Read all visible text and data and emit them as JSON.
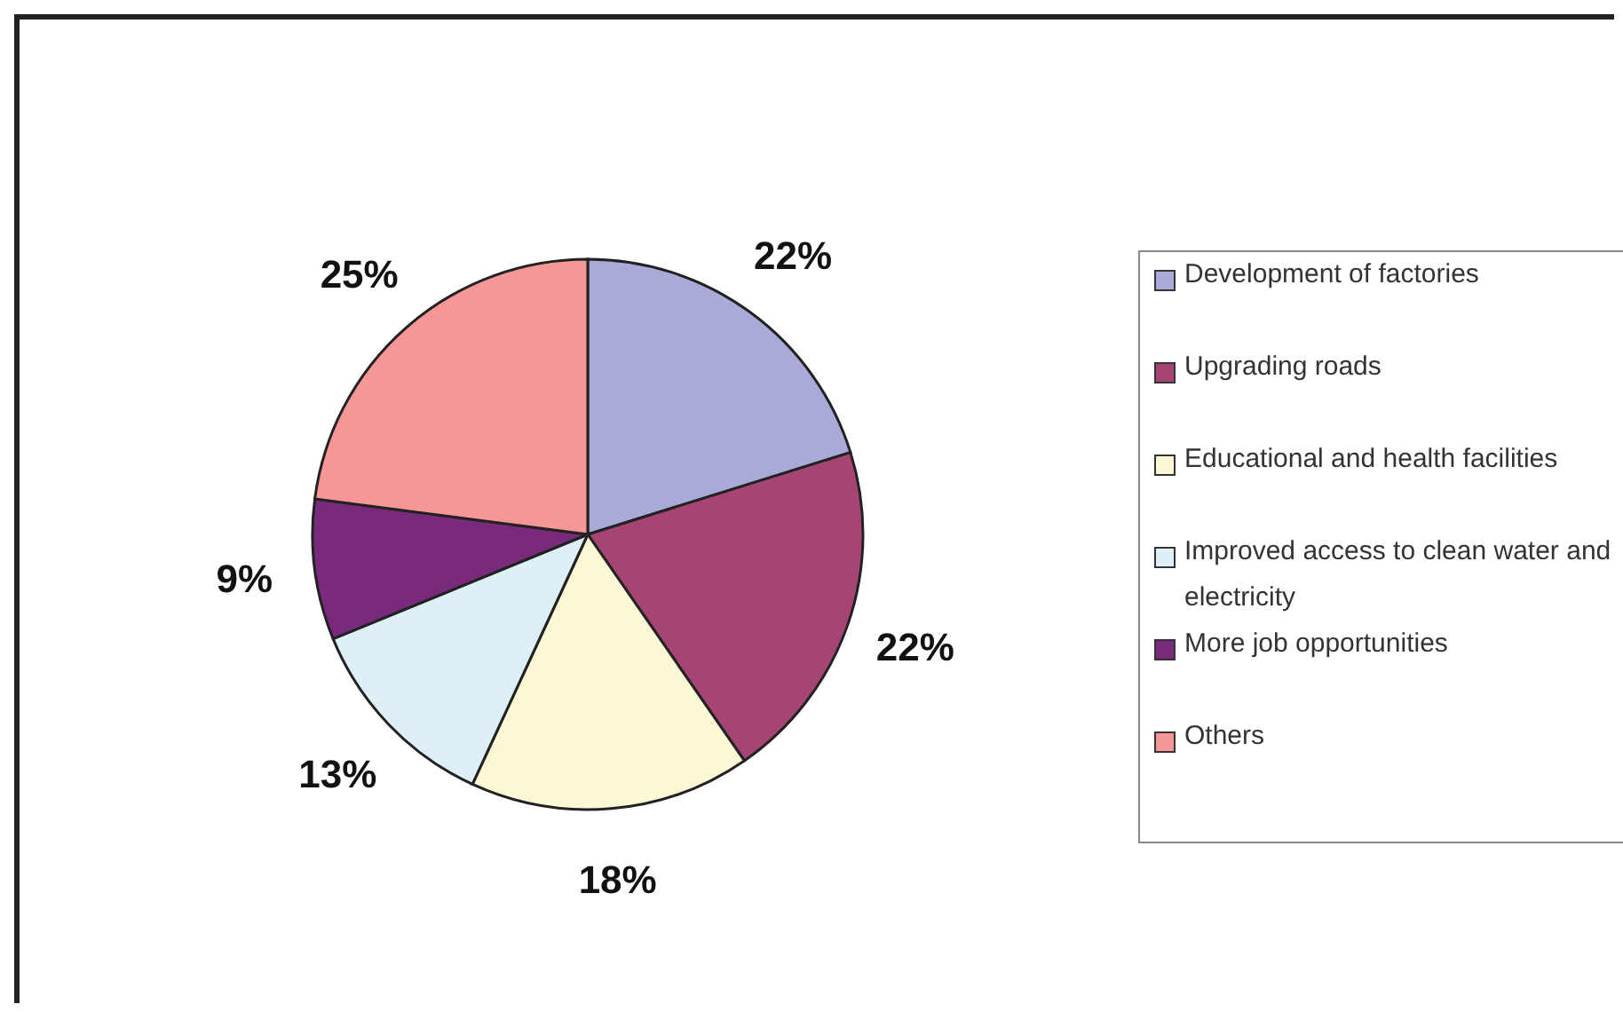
{
  "chart_data": {
    "type": "pie",
    "categories": [
      "Development of factories",
      "Upgrading roads",
      "Educational and health facilities",
      "Improved access to clean water and electricity",
      "More job opportunities",
      "Others"
    ],
    "values": [
      22,
      22,
      18,
      13,
      9,
      25
    ],
    "value_labels": [
      "22%",
      "22%",
      "18%",
      "13%",
      "9%",
      "25%"
    ],
    "colors": [
      "#aaaad8",
      "#a64474",
      "#fcf8d6",
      "#dcf0f6",
      "#7a2a7c",
      "#f69696"
    ],
    "legend": "right"
  }
}
